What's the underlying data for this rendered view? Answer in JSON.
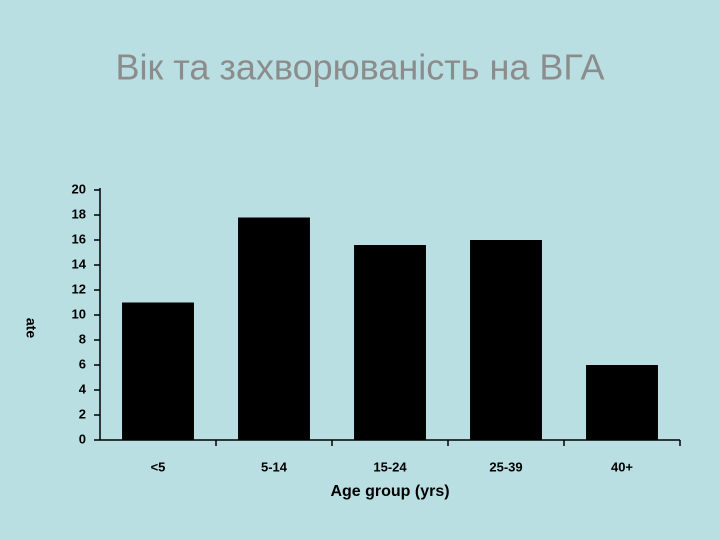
{
  "chart_data": {
    "type": "bar",
    "title": "Вік та захворюваність на ВГА",
    "x_label": "Age group (yrs)",
    "y_label": "ate",
    "categories": [
      "<5",
      "5-14",
      "15-24",
      "25-39",
      "40+"
    ],
    "values": [
      11,
      17.8,
      15.6,
      16,
      6
    ],
    "color": "#000000",
    "ylim": [
      0,
      20
    ],
    "yticks": [
      0,
      2,
      4,
      6,
      8,
      10,
      12,
      14,
      16,
      18,
      20
    ],
    "grid": false
  }
}
